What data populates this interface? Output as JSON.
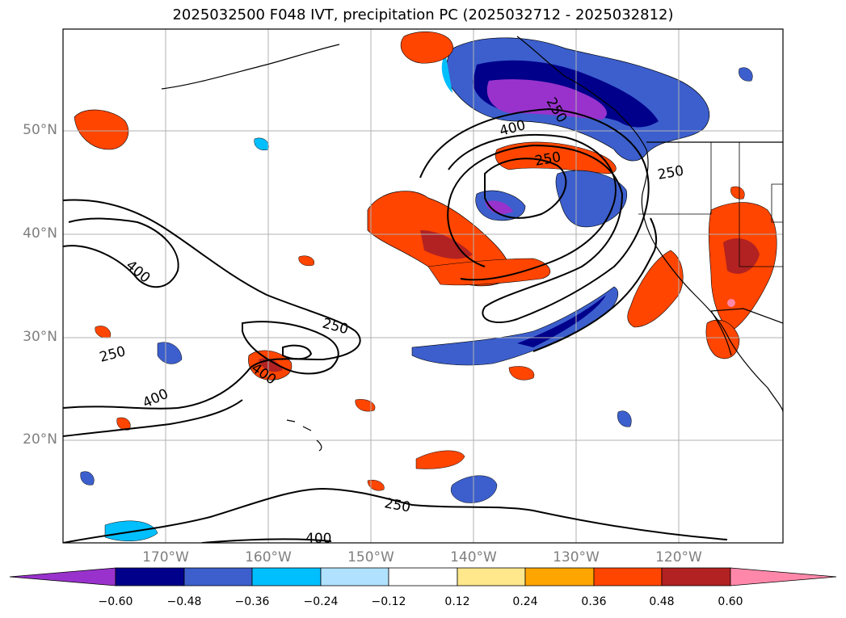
{
  "title": "2025032500 F048 IVT, precipitation PC (2025032712 - 2025032812)",
  "lat_labels": [
    "50°N",
    "40°N",
    "30°N",
    "20°N"
  ],
  "lon_labels": [
    "170°W",
    "160°W",
    "150°W",
    "140°W",
    "130°W",
    "120°W"
  ],
  "colorbar": {
    "ticks": [
      "−0.60",
      "−0.48",
      "−0.36",
      "−0.24",
      "−0.12",
      "0.12",
      "0.24",
      "0.36",
      "0.48",
      "0.60"
    ],
    "colors": [
      "#9932cc",
      "#00008b",
      "#3c5fcd",
      "#00bfff",
      "#b0e2ff",
      "#ffffff",
      "#ffe88c",
      "#ffa500",
      "#ff4500",
      "#b22222",
      "#ff88aa"
    ]
  },
  "contour_labels": [
    "400",
    "250",
    "250",
    "250",
    "400",
    "400",
    "250",
    "400",
    "250",
    "400",
    "250"
  ],
  "colors": {
    "purple": "#9932cc",
    "navy": "#00008b",
    "royal": "#3c5fcd",
    "sky": "#00bfff",
    "lightblue": "#b0e2ff",
    "yellow": "#ffe88c",
    "orange": "#ffa500",
    "redorange": "#ff4500",
    "firebrick": "#b22222",
    "pink": "#ff88aa"
  }
}
